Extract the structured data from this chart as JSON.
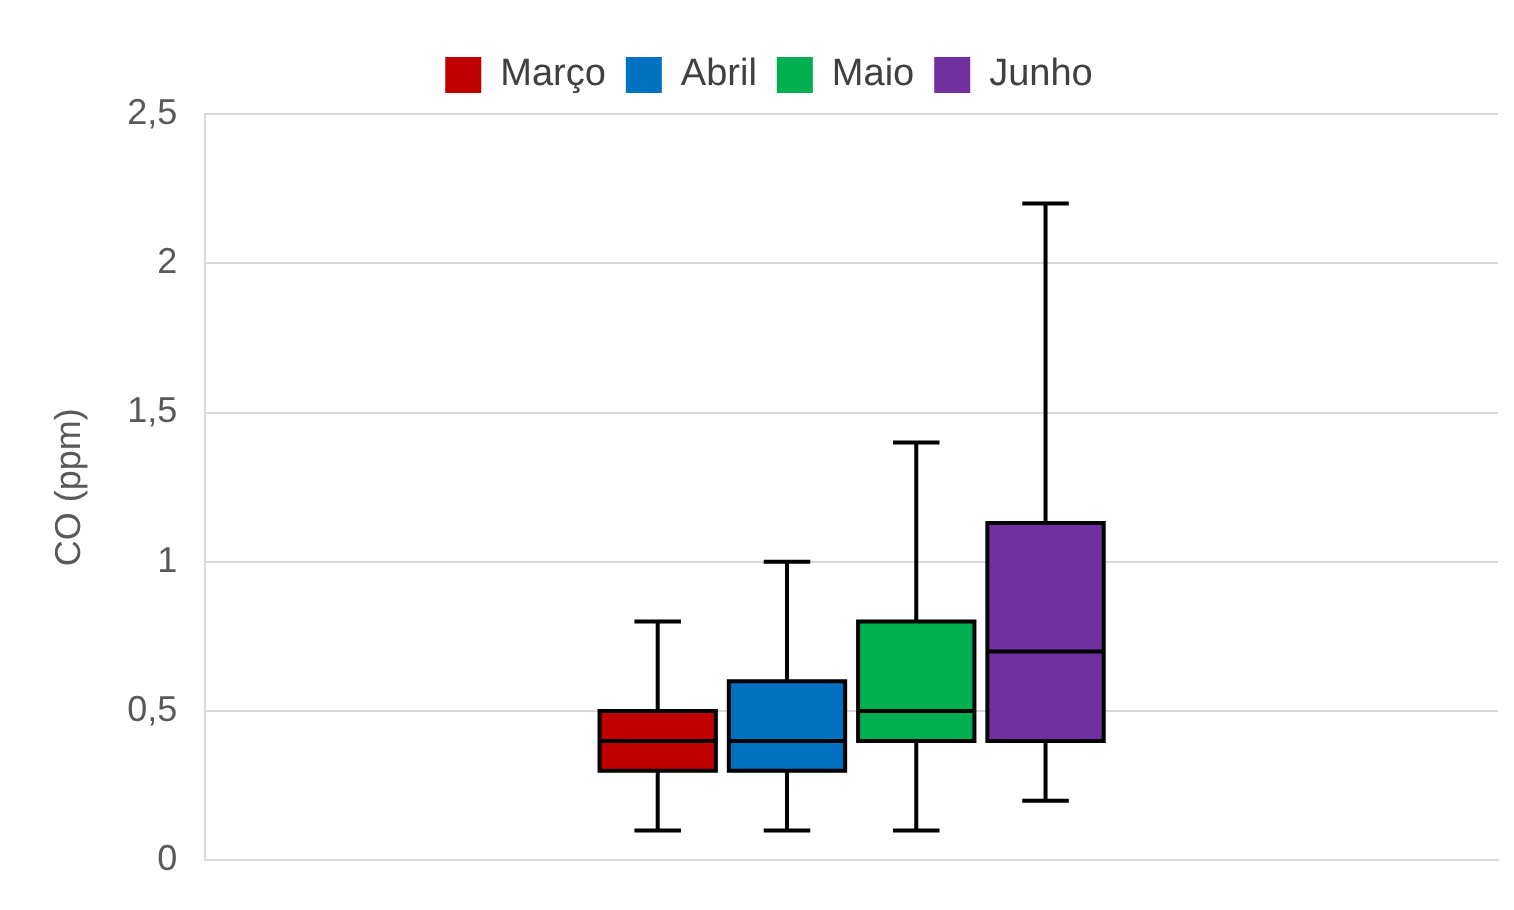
{
  "chart_data": {
    "type": "box",
    "ylabel": "CO (ppm)",
    "categories": [
      null
    ],
    "series": [
      {
        "name": "Março",
        "color": "#c00000",
        "boxes": [
          {
            "low": 0.1,
            "q1": 0.3,
            "median": 0.4,
            "q3": 0.5,
            "high": 0.8
          }
        ]
      },
      {
        "name": "Abril",
        "color": "#0070c0",
        "boxes": [
          {
            "low": 0.1,
            "q1": 0.3,
            "median": 0.4,
            "q3": 0.6,
            "high": 1.0
          }
        ]
      },
      {
        "name": "Maio",
        "color": "#00b050",
        "boxes": [
          {
            "low": 0.1,
            "q1": 0.4,
            "median": 0.5,
            "q3": 0.8,
            "high": 1.4
          }
        ]
      },
      {
        "name": "Junho",
        "color": "#7030a0",
        "boxes": [
          {
            "low": 0.2,
            "q1": 0.4,
            "median": 0.7,
            "q3": 1.13,
            "high": 2.2
          }
        ]
      }
    ],
    "ylim": [
      0,
      2.5
    ],
    "yticks": [
      0,
      {
        "value": 0.5,
        "label": "0,5"
      },
      1,
      {
        "value": 1.5,
        "label": "1,5"
      },
      2,
      {
        "value": 2.5,
        "label": "2,5"
      }
    ],
    "grid": "y",
    "legend": "top"
  }
}
